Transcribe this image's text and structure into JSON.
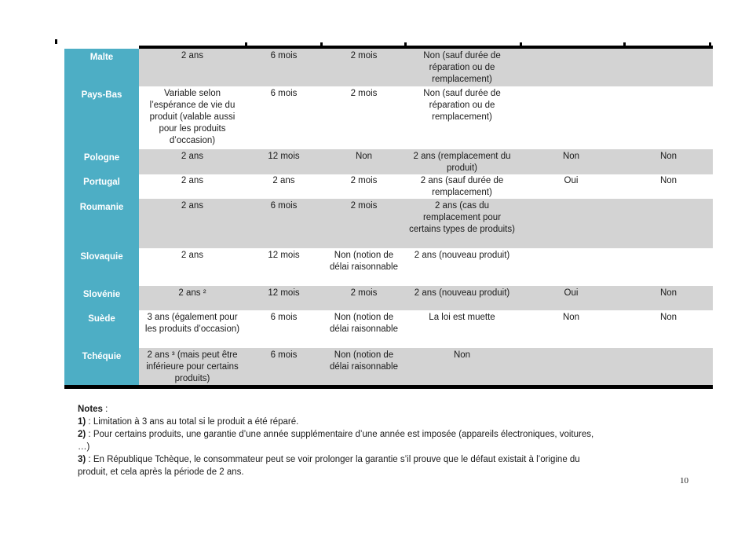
{
  "page": {
    "number": "10"
  },
  "colors": {
    "accent_teal": "#4daec5",
    "row_gray": "#d3d3d3",
    "border_black": "#000000"
  },
  "table": {
    "rows": [
      {
        "country": "Malte",
        "cells": [
          "2 ans",
          "6 mois",
          "2 mois",
          "Non (sauf durée de réparation ou de remplacement)",
          "",
          ""
        ]
      },
      {
        "country": "Pays-Bas",
        "cells": [
          "Variable selon l’espérance de vie du produit (valable aussi pour les produits d’occasion)",
          "6 mois",
          "2 mois",
          "Non (sauf durée de réparation ou de remplacement)",
          "",
          ""
        ]
      },
      {
        "country": "Pologne",
        "cells": [
          "2 ans",
          "12 mois",
          "Non",
          "2 ans (remplacement du produit)",
          "Non",
          "Non"
        ]
      },
      {
        "country": "Portugal",
        "cells": [
          "2 ans",
          "2 ans",
          "2 mois",
          "2 ans (sauf durée de remplacement)",
          "Oui",
          "Non"
        ]
      },
      {
        "country": "Roumanie",
        "cells": [
          "2 ans",
          "6 mois",
          "2 mois",
          "2 ans (cas du remplacement pour certains types de produits)",
          "",
          ""
        ]
      },
      {
        "country": "Slovaquie",
        "cells": [
          "2 ans",
          "12 mois",
          "Non (notion de délai raisonnable",
          "2 ans (nouveau produit)",
          "",
          ""
        ]
      },
      {
        "country": "Slovénie",
        "cells": [
          "2 ans ²",
          "12 mois",
          "2 mois",
          "2 ans (nouveau produit)",
          "Oui",
          "Non"
        ]
      },
      {
        "country": "Suède",
        "cells": [
          "3 ans (également pour les produits d’occasion)",
          "6 mois",
          "Non (notion de délai raisonnable",
          "La loi est muette",
          "Non",
          "Non"
        ]
      },
      {
        "country": "Tchéquie",
        "cells": [
          "2 ans ³ (mais peut être inférieure pour certains produits)",
          "6 mois",
          "Non (notion de délai raisonnable",
          "Non",
          "",
          ""
        ]
      }
    ]
  },
  "notes": {
    "title": {
      "prefix": "Notes",
      "body": " :"
    },
    "items": [
      {
        "prefix": "1)",
        "body": " : Limitation à 3 ans au total si le produit a été réparé."
      },
      {
        "prefix": "2)",
        "body": " : Pour certains produits, une garantie d’une année supplémentaire d’une année est imposée (appareils électroniques, voitures,\n…)"
      },
      {
        "prefix": "3)",
        "body": " : En République Tchèque, le consommateur peut se voir prolonger la garantie s’il prouve que le défaut existait à l’origine du\nproduit, et cela après la période de 2 ans."
      }
    ]
  }
}
